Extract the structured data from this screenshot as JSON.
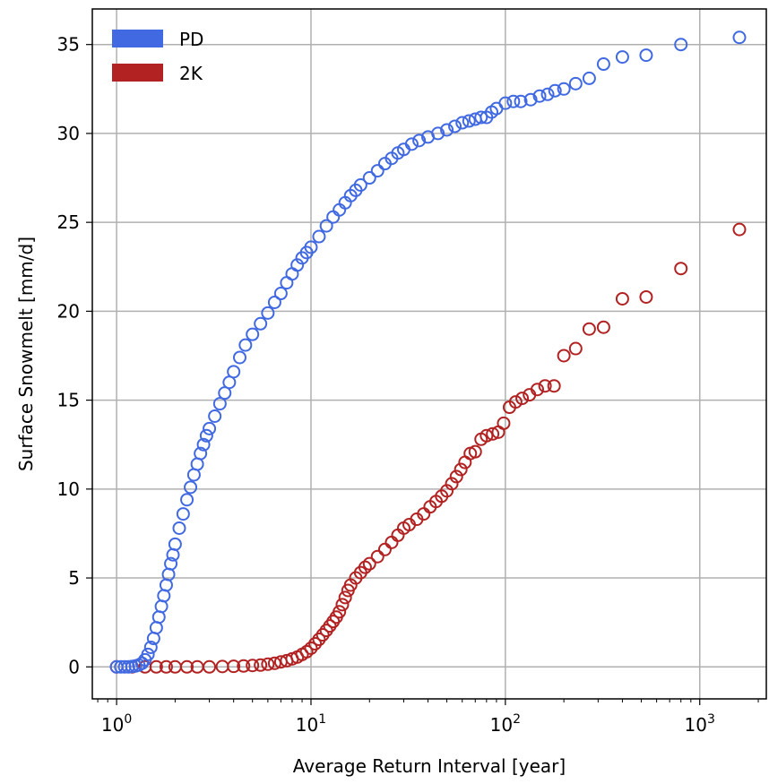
{
  "chart_data": {
    "type": "scatter",
    "title": "",
    "xlabel": "Average Return Interval [year]",
    "ylabel": "Surface Snowmelt [mm/d]",
    "xscale": "log",
    "xlim": [
      0.75,
      2200
    ],
    "ylim": [
      -1.8,
      37
    ],
    "x_ticks": [
      {
        "base": "10",
        "exp": "0",
        "value": 1
      },
      {
        "base": "10",
        "exp": "1",
        "value": 10
      },
      {
        "base": "10",
        "exp": "2",
        "value": 100
      },
      {
        "base": "10",
        "exp": "3",
        "value": 1000
      }
    ],
    "y_ticks": [
      0,
      5,
      10,
      15,
      20,
      25,
      30,
      35
    ],
    "grid": true,
    "legend_position": "top-left",
    "marker": "open-circle",
    "series": [
      {
        "name": "PD",
        "color": "#4169e1",
        "points": [
          [
            1.0,
            0.0
          ],
          [
            1.05,
            0.0
          ],
          [
            1.1,
            0.0
          ],
          [
            1.15,
            0.0
          ],
          [
            1.2,
            0.02
          ],
          [
            1.25,
            0.05
          ],
          [
            1.3,
            0.1
          ],
          [
            1.35,
            0.2
          ],
          [
            1.4,
            0.4
          ],
          [
            1.45,
            0.7
          ],
          [
            1.5,
            1.1
          ],
          [
            1.55,
            1.6
          ],
          [
            1.6,
            2.2
          ],
          [
            1.65,
            2.8
          ],
          [
            1.7,
            3.4
          ],
          [
            1.75,
            4.0
          ],
          [
            1.8,
            4.6
          ],
          [
            1.85,
            5.2
          ],
          [
            1.9,
            5.8
          ],
          [
            1.95,
            6.3
          ],
          [
            2.0,
            6.9
          ],
          [
            2.1,
            7.8
          ],
          [
            2.2,
            8.6
          ],
          [
            2.3,
            9.4
          ],
          [
            2.4,
            10.1
          ],
          [
            2.5,
            10.8
          ],
          [
            2.6,
            11.4
          ],
          [
            2.7,
            12.0
          ],
          [
            2.8,
            12.5
          ],
          [
            2.9,
            13.0
          ],
          [
            3.0,
            13.4
          ],
          [
            3.2,
            14.1
          ],
          [
            3.4,
            14.8
          ],
          [
            3.6,
            15.4
          ],
          [
            3.8,
            16.0
          ],
          [
            4.0,
            16.6
          ],
          [
            4.3,
            17.4
          ],
          [
            4.6,
            18.1
          ],
          [
            5.0,
            18.7
          ],
          [
            5.5,
            19.3
          ],
          [
            6.0,
            19.9
          ],
          [
            6.5,
            20.5
          ],
          [
            7.0,
            21.0
          ],
          [
            7.5,
            21.6
          ],
          [
            8.0,
            22.1
          ],
          [
            8.5,
            22.6
          ],
          [
            9.0,
            23.0
          ],
          [
            9.5,
            23.3
          ],
          [
            10.0,
            23.6
          ],
          [
            11.0,
            24.2
          ],
          [
            12.0,
            24.8
          ],
          [
            13.0,
            25.3
          ],
          [
            14.0,
            25.7
          ],
          [
            15.0,
            26.1
          ],
          [
            16.0,
            26.5
          ],
          [
            17.0,
            26.8
          ],
          [
            18.0,
            27.1
          ],
          [
            20.0,
            27.5
          ],
          [
            22.0,
            27.9
          ],
          [
            24.0,
            28.3
          ],
          [
            26.0,
            28.6
          ],
          [
            28.0,
            28.9
          ],
          [
            30.0,
            29.1
          ],
          [
            33.0,
            29.4
          ],
          [
            36.0,
            29.6
          ],
          [
            40.0,
            29.8
          ],
          [
            45.0,
            30.0
          ],
          [
            50.0,
            30.2
          ],
          [
            55.0,
            30.4
          ],
          [
            60.0,
            30.6
          ],
          [
            65.0,
            30.7
          ],
          [
            70.0,
            30.8
          ],
          [
            75.0,
            30.9
          ],
          [
            80.0,
            30.9
          ],
          [
            85.0,
            31.2
          ],
          [
            90.0,
            31.4
          ],
          [
            100.0,
            31.7
          ],
          [
            110.0,
            31.8
          ],
          [
            120.0,
            31.8
          ],
          [
            135.0,
            31.9
          ],
          [
            150.0,
            32.1
          ],
          [
            165.0,
            32.2
          ],
          [
            180.0,
            32.4
          ],
          [
            200.0,
            32.5
          ],
          [
            230.0,
            32.8
          ],
          [
            270.0,
            33.1
          ],
          [
            320.0,
            33.9
          ],
          [
            400.0,
            34.3
          ],
          [
            530.0,
            34.4
          ],
          [
            800.0,
            35.0
          ],
          [
            1600.0,
            35.4
          ]
        ]
      },
      {
        "name": "2K",
        "color": "#b22222",
        "points": [
          [
            1.0,
            0.0
          ],
          [
            1.2,
            0.0
          ],
          [
            1.4,
            0.0
          ],
          [
            1.6,
            0.0
          ],
          [
            1.8,
            0.0
          ],
          [
            2.0,
            0.0
          ],
          [
            2.3,
            0.0
          ],
          [
            2.6,
            0.0
          ],
          [
            3.0,
            0.0
          ],
          [
            3.5,
            0.02
          ],
          [
            4.0,
            0.03
          ],
          [
            4.5,
            0.05
          ],
          [
            5.0,
            0.08
          ],
          [
            5.5,
            0.1
          ],
          [
            6.0,
            0.15
          ],
          [
            6.5,
            0.2
          ],
          [
            7.0,
            0.28
          ],
          [
            7.5,
            0.35
          ],
          [
            8.0,
            0.45
          ],
          [
            8.5,
            0.55
          ],
          [
            9.0,
            0.7
          ],
          [
            9.5,
            0.85
          ],
          [
            10.0,
            1.05
          ],
          [
            10.5,
            1.3
          ],
          [
            11.0,
            1.55
          ],
          [
            11.5,
            1.8
          ],
          [
            12.0,
            2.05
          ],
          [
            12.5,
            2.3
          ],
          [
            13.0,
            2.55
          ],
          [
            13.5,
            2.8
          ],
          [
            14.0,
            3.1
          ],
          [
            14.5,
            3.5
          ],
          [
            15.0,
            3.9
          ],
          [
            15.5,
            4.3
          ],
          [
            16.0,
            4.6
          ],
          [
            17.0,
            5.0
          ],
          [
            18.0,
            5.3
          ],
          [
            19.0,
            5.6
          ],
          [
            20.0,
            5.8
          ],
          [
            22.0,
            6.2
          ],
          [
            24.0,
            6.6
          ],
          [
            26.0,
            7.0
          ],
          [
            28.0,
            7.4
          ],
          [
            30.0,
            7.8
          ],
          [
            32.0,
            8.0
          ],
          [
            35.0,
            8.3
          ],
          [
            38.0,
            8.6
          ],
          [
            41.0,
            9.0
          ],
          [
            44.0,
            9.3
          ],
          [
            47.0,
            9.6
          ],
          [
            50.0,
            9.9
          ],
          [
            53.0,
            10.3
          ],
          [
            56.0,
            10.7
          ],
          [
            59.0,
            11.1
          ],
          [
            62.0,
            11.5
          ],
          [
            66.0,
            12.0
          ],
          [
            70.0,
            12.1
          ],
          [
            75.0,
            12.8
          ],
          [
            80.0,
            13.0
          ],
          [
            86.0,
            13.1
          ],
          [
            92.0,
            13.2
          ],
          [
            98.0,
            13.7
          ],
          [
            105.0,
            14.6
          ],
          [
            113.0,
            14.9
          ],
          [
            122.0,
            15.1
          ],
          [
            133.0,
            15.3
          ],
          [
            146.0,
            15.6
          ],
          [
            160.0,
            15.8
          ],
          [
            178.0,
            15.8
          ],
          [
            200.0,
            17.5
          ],
          [
            230.0,
            17.9
          ],
          [
            270.0,
            19.0
          ],
          [
            320.0,
            19.1
          ],
          [
            400.0,
            20.7
          ],
          [
            530.0,
            20.8
          ],
          [
            800.0,
            22.4
          ],
          [
            1600.0,
            24.6
          ]
        ]
      }
    ]
  }
}
